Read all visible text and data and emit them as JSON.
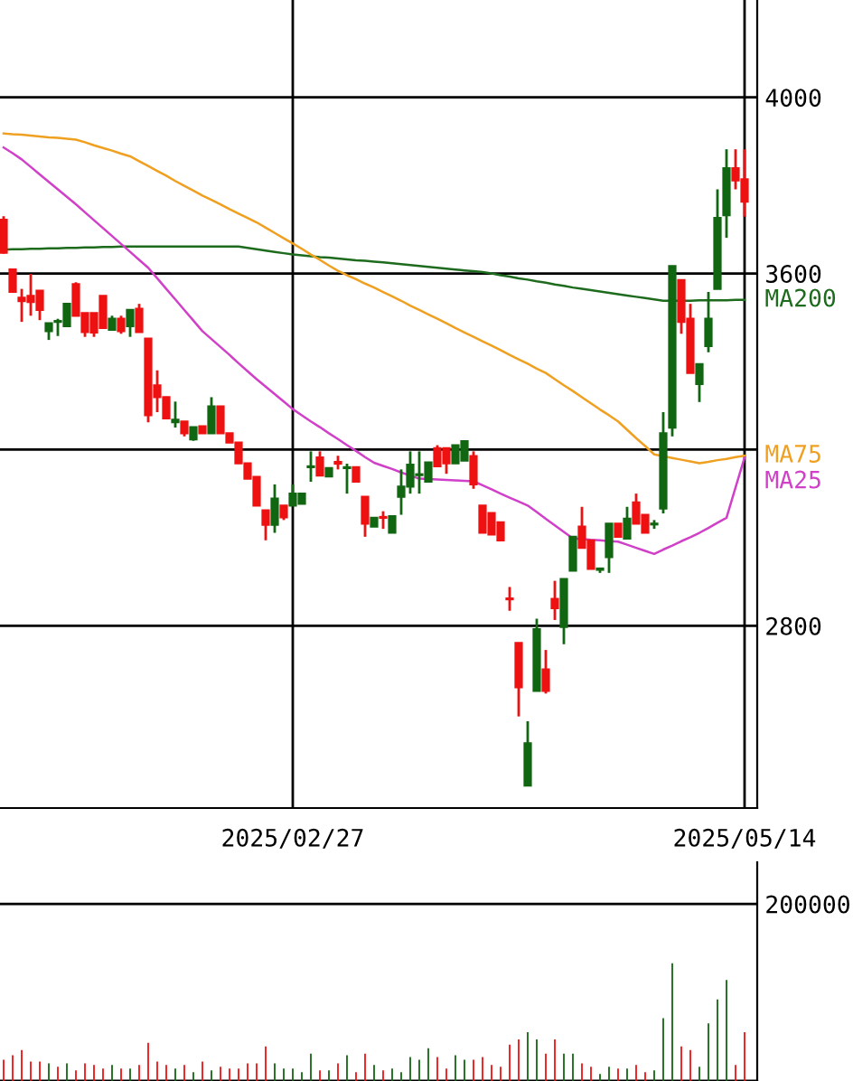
{
  "chart_data": [
    {
      "type": "candlestick",
      "categories": [
        null,
        null,
        null,
        null,
        null,
        null,
        null,
        null,
        null,
        null,
        null,
        null,
        null,
        null,
        null,
        null,
        null,
        null,
        null,
        null,
        null,
        null,
        null,
        null,
        null,
        null,
        null,
        null,
        null,
        null,
        null,
        null,
        "2025/02/27",
        null,
        null,
        null,
        null,
        null,
        null,
        null,
        null,
        null,
        null,
        null,
        null,
        null,
        null,
        null,
        null,
        null,
        null,
        null,
        null,
        null,
        null,
        null,
        null,
        null,
        null,
        null,
        null,
        null,
        null,
        null,
        null,
        null,
        null,
        null,
        null,
        null,
        null,
        null,
        null,
        null,
        null,
        null,
        null,
        null,
        null,
        null,
        null,
        null,
        "2025/05/14"
      ],
      "ohlc": [
        [
          3722,
          3730,
          3645,
          3647
        ],
        [
          3609,
          3609,
          3558,
          3558
        ],
        [
          3545,
          3565,
          3490,
          3537
        ],
        [
          3549,
          3599,
          3504,
          3535
        ],
        [
          3561,
          3561,
          3494,
          3517
        ],
        [
          3469,
          3487,
          3449,
          3487
        ],
        [
          3490,
          3497,
          3458,
          3492
        ],
        [
          3480,
          3531,
          3480,
          3531
        ],
        [
          3576,
          3580,
          3504,
          3504
        ],
        [
          3510,
          3510,
          3456,
          3467
        ],
        [
          3510,
          3510,
          3456,
          3466
        ],
        [
          3549,
          3549,
          3476,
          3476
        ],
        [
          3472,
          3504,
          3472,
          3497
        ],
        [
          3497,
          3504,
          3463,
          3469
        ],
        [
          3480,
          3517,
          3456,
          3517
        ],
        [
          3520,
          3531,
          3467,
          3467
        ],
        [
          3452,
          3452,
          3262,
          3278
        ],
        [
          3346,
          3380,
          3285,
          3319
        ],
        [
          3319,
          3319,
          3271,
          3271
        ],
        [
          3262,
          3309,
          3250,
          3268
        ],
        [
          3264,
          3264,
          3230,
          3237
        ],
        [
          3223,
          3251,
          3220,
          3251
        ],
        [
          3253,
          3253,
          3237,
          3237
        ],
        [
          3237,
          3319,
          3237,
          3298
        ],
        [
          3298,
          3298,
          3237,
          3237
        ],
        [
          3237,
          3237,
          3216,
          3216
        ],
        [
          3216,
          3216,
          3169,
          3169
        ],
        [
          3169,
          3169,
          3134,
          3134
        ],
        [
          3138,
          3138,
          3073,
          3073
        ],
        [
          3062,
          3062,
          2994,
          3029
        ],
        [
          3029,
          3121,
          3011,
          3089
        ],
        [
          3073,
          3073,
          3040,
          3046
        ],
        [
          3073,
          3121,
          3073,
          3100
        ],
        [
          3077,
          3100,
          3077,
          3100
        ],
        [
          3160,
          3196,
          3127,
          3162
        ],
        [
          3182,
          3196,
          3141,
          3141
        ],
        [
          3139,
          3158,
          3139,
          3158
        ],
        [
          3172,
          3186,
          3155,
          3168
        ],
        [
          3158,
          3168,
          3100,
          3160
        ],
        [
          3160,
          3160,
          3127,
          3127
        ],
        [
          3093,
          3093,
          3002,
          3032
        ],
        [
          3025,
          3045,
          3025,
          3045
        ],
        [
          3047,
          3060,
          3020,
          3045
        ],
        [
          3011,
          3049,
          3011,
          3049
        ],
        [
          3093,
          3155,
          3052,
          3116
        ],
        [
          3116,
          3196,
          3100,
          3166
        ],
        [
          3142,
          3196,
          3100,
          3144
        ],
        [
          3127,
          3171,
          3127,
          3171
        ],
        [
          3203,
          3210,
          3162,
          3162
        ],
        [
          3203,
          3203,
          3145,
          3169
        ],
        [
          3169,
          3210,
          3169,
          3210
        ],
        [
          3175,
          3219,
          3175,
          3219
        ],
        [
          3185,
          3196,
          3111,
          3121
        ],
        [
          3073,
          3073,
          3011,
          3011
        ],
        [
          3056,
          3056,
          3007,
          3007
        ],
        [
          3035,
          3035,
          2994,
          2994
        ],
        [
          2862,
          2888,
          2834,
          2860
        ],
        [
          2761,
          2761,
          2594,
          2660
        ],
        [
          2437,
          2583,
          2437,
          2533
        ],
        [
          2652,
          2816,
          2652,
          2792
        ],
        [
          2701,
          2745,
          2646,
          2652
        ],
        [
          2861,
          2902,
          2813,
          2840
        ],
        [
          2797,
          2906,
          2758,
          2906
        ],
        [
          2925,
          3002,
          2925,
          3002
        ],
        [
          3025,
          3070,
          2977,
          2977
        ],
        [
          2994,
          2994,
          2929,
          2929
        ],
        [
          2927,
          2930,
          2920,
          2930
        ],
        [
          2956,
          3032,
          2920,
          3032
        ],
        [
          3032,
          3032,
          3002,
          3002
        ],
        [
          2998,
          3070,
          2998,
          3043
        ],
        [
          3080,
          3100,
          3032,
          3032
        ],
        [
          3052,
          3052,
          3011,
          3011
        ],
        [
          3030,
          3040,
          3020,
          3032
        ],
        [
          3066,
          3285,
          3055,
          3237
        ],
        [
          3250,
          3617,
          3230,
          3617
        ],
        [
          3585,
          3585,
          3463,
          3490
        ],
        [
          3497,
          3531,
          3374,
          3374
        ],
        [
          3349,
          3394,
          3308,
          3394
        ],
        [
          3435,
          3558,
          3421,
          3497
        ],
        [
          3565,
          3791,
          3565,
          3726
        ],
        [
          3732,
          3882,
          3681,
          3839
        ],
        [
          3839,
          3882,
          3791,
          3811
        ],
        [
          3814,
          3882,
          3729,
          3763
        ]
      ],
      "colors": [
        "#ee1111",
        "#ee1111",
        "#ee1111",
        "#ee1111",
        "#ee1111",
        "#116611",
        "#116611",
        "#116611",
        "#ee1111",
        "#ee1111",
        "#ee1111",
        "#ee1111",
        "#116611",
        "#ee1111",
        "#116611",
        "#ee1111",
        "#ee1111",
        "#ee1111",
        "#ee1111",
        "#116611",
        "#ee1111",
        "#116611",
        "#ee1111",
        "#116611",
        "#ee1111",
        "#ee1111",
        "#ee1111",
        "#ee1111",
        "#ee1111",
        "#ee1111",
        "#116611",
        "#ee1111",
        "#116611",
        "#116611",
        "#116611",
        "#ee1111",
        "#116611",
        "#ee1111",
        "#116611",
        "#ee1111",
        "#ee1111",
        "#116611",
        "#ee1111",
        "#116611",
        "#116611",
        "#116611",
        "#116611",
        "#116611",
        "#ee1111",
        "#ee1111",
        "#116611",
        "#116611",
        "#ee1111",
        "#ee1111",
        "#ee1111",
        "#ee1111",
        "#ee1111",
        "#ee1111",
        "#116611",
        "#116611",
        "#ee1111",
        "#ee1111",
        "#116611",
        "#116611",
        "#ee1111",
        "#ee1111",
        "#116611",
        "#116611",
        "#ee1111",
        "#116611",
        "#ee1111",
        "#ee1111",
        "#116611",
        "#116611",
        "#116611",
        "#ee1111",
        "#ee1111",
        "#116611",
        "#116611",
        "#116611",
        "#116611",
        "#ee1111",
        "#ee1111"
      ],
      "series": [
        {
          "type": "line",
          "name": "MA200",
          "color": "#1e6b1e",
          "values": [
            3654,
            3655,
            3655,
            3656,
            3656,
            3657,
            3657,
            3658,
            3658,
            3659,
            3659,
            3660,
            3660,
            3661,
            3661,
            3661,
            3661,
            3661,
            3661,
            3661,
            3661,
            3661,
            3661,
            3661,
            3661,
            3661,
            3661,
            3658,
            3655,
            3652,
            3649,
            3646,
            3643,
            3641,
            3639,
            3637,
            3636,
            3634,
            3632,
            3630,
            3629,
            3627,
            3625,
            3623,
            3621,
            3619,
            3617,
            3615,
            3613,
            3611,
            3609,
            3607,
            3605,
            3603,
            3600,
            3596,
            3593,
            3589,
            3586,
            3582,
            3579,
            3575,
            3572,
            3568,
            3565,
            3562,
            3559,
            3556,
            3553,
            3550,
            3547,
            3544,
            3541,
            3538,
            3538,
            3538,
            3538,
            3539,
            3539,
            3539,
            3539,
            3540,
            3540
          ]
        },
        {
          "type": "line",
          "name": "MA75",
          "color": "#f0a020",
          "values": [
            3918,
            3916,
            3915,
            3913,
            3911,
            3909,
            3908,
            3906,
            3904,
            3898,
            3891,
            3885,
            3879,
            3872,
            3866,
            3855,
            3844,
            3833,
            3822,
            3810,
            3799,
            3788,
            3777,
            3767,
            3757,
            3746,
            3736,
            3726,
            3716,
            3704,
            3692,
            3680,
            3668,
            3656,
            3643,
            3631,
            3618,
            3606,
            3596,
            3587,
            3577,
            3568,
            3558,
            3548,
            3538,
            3527,
            3517,
            3507,
            3497,
            3487,
            3476,
            3466,
            3456,
            3446,
            3436,
            3426,
            3415,
            3405,
            3395,
            3384,
            3374,
            3360,
            3346,
            3333,
            3319,
            3305,
            3291,
            3278,
            3264,
            3245,
            3226,
            3208,
            3189,
            3185,
            3181,
            3177,
            3173,
            3169,
            3172,
            3176,
            3179,
            3183,
            3186
          ]
        },
        {
          "type": "line",
          "name": "MA25",
          "color": "#d040c8",
          "values": [
            3886,
            3873,
            3859,
            3842,
            3825,
            3808,
            3791,
            3774,
            3757,
            3739,
            3721,
            3703,
            3685,
            3667,
            3649,
            3631,
            3613,
            3589,
            3565,
            3541,
            3517,
            3493,
            3469,
            3451,
            3433,
            3415,
            3396,
            3378,
            3360,
            3343,
            3326,
            3309,
            3292,
            3278,
            3264,
            3251,
            3237,
            3224,
            3210,
            3197,
            3183,
            3170,
            3163,
            3156,
            3148,
            3141,
            3134,
            3133,
            3132,
            3131,
            3130,
            3129,
            3128,
            3119,
            3110,
            3100,
            3091,
            3082,
            3073,
            3058,
            3043,
            3028,
            3013,
            2998,
            2997,
            2995,
            2994,
            2992,
            2991,
            2984,
            2977,
            2970,
            2963,
            2973,
            2982,
            2992,
            3001,
            3011,
            3022,
            3034,
            3045,
            3114,
            3182
          ]
        }
      ],
      "ylim": [
        2386,
        4221
      ],
      "yticks": [
        2800,
        {
          "value": 3200,
          "label": null
        },
        3600,
        4000
      ],
      "grid": true
    },
    {
      "type": "bar",
      "categories": [
        null,
        null,
        null,
        null,
        null,
        null,
        null,
        null,
        null,
        null,
        null,
        null,
        null,
        null,
        null,
        null,
        null,
        null,
        null,
        null,
        null,
        null,
        null,
        null,
        null,
        null,
        null,
        null,
        null,
        null,
        null,
        null,
        null,
        null,
        null,
        null,
        null,
        null,
        null,
        null,
        null,
        null,
        null,
        null,
        null,
        null,
        null,
        null,
        null,
        null,
        null,
        null,
        null,
        null,
        null,
        null,
        null,
        null,
        null,
        null,
        null,
        null,
        null,
        null,
        null,
        null,
        null,
        null,
        null,
        null,
        null,
        null,
        null,
        null,
        null,
        null,
        null,
        null,
        null,
        null,
        null,
        null,
        null
      ],
      "values": [
        24000,
        29000,
        35000,
        22000,
        22000,
        20000,
        16000,
        20000,
        12000,
        20000,
        18000,
        14000,
        18000,
        14000,
        14000,
        18000,
        43000,
        22000,
        18000,
        14000,
        18000,
        10000,
        22000,
        12000,
        16000,
        14000,
        14000,
        20000,
        20000,
        39000,
        20000,
        14000,
        14000,
        10000,
        31000,
        12000,
        12000,
        20000,
        29000,
        10000,
        31000,
        18000,
        12000,
        14000,
        10000,
        27000,
        24000,
        37000,
        27000,
        14000,
        29000,
        24000,
        24000,
        27000,
        18000,
        16000,
        41000,
        47000,
        55000,
        47000,
        31000,
        47000,
        31000,
        31000,
        20000,
        16000,
        8000,
        16000,
        14000,
        14000,
        18000,
        10000,
        12000,
        71000,
        133000,
        39000,
        35000,
        16000,
        65000,
        92000,
        114000,
        18000,
        55000
      ],
      "colors": [
        "#ee1111",
        "#ee1111",
        "#ee1111",
        "#ee1111",
        "#ee1111",
        "#116611",
        "#ee1111",
        "#116611",
        "#ee1111",
        "#ee1111",
        "#ee1111",
        "#ee1111",
        "#116611",
        "#ee1111",
        "#116611",
        "#ee1111",
        "#ee1111",
        "#ee1111",
        "#ee1111",
        "#116611",
        "#ee1111",
        "#116611",
        "#ee1111",
        "#116611",
        "#ee1111",
        "#ee1111",
        "#ee1111",
        "#ee1111",
        "#ee1111",
        "#ee1111",
        "#116611",
        "#116611",
        "#116611",
        "#116611",
        "#116611",
        "#ee1111",
        "#116611",
        "#ee1111",
        "#116611",
        "#ee1111",
        "#ee1111",
        "#116611",
        "#ee1111",
        "#116611",
        "#116611",
        "#116611",
        "#116611",
        "#116611",
        "#ee1111",
        "#ee1111",
        "#116611",
        "#116611",
        "#ee1111",
        "#ee1111",
        "#ee1111",
        "#ee1111",
        "#ee1111",
        "#ee1111",
        "#116611",
        "#116611",
        "#ee1111",
        "#ee1111",
        "#116611",
        "#116611",
        "#ee1111",
        "#ee1111",
        "#116611",
        "#116611",
        "#ee1111",
        "#116611",
        "#ee1111",
        "#ee1111",
        "#116611",
        "#116611",
        "#116611",
        "#ee1111",
        "#ee1111",
        "#116611",
        "#116611",
        "#116611",
        "#116611",
        "#ee1111",
        "#ee1111"
      ],
      "ylim": [
        0,
        247000
      ],
      "yticks": [
        {
          "value": 0,
          "label": null
        },
        200000
      ],
      "grid": "y"
    }
  ]
}
